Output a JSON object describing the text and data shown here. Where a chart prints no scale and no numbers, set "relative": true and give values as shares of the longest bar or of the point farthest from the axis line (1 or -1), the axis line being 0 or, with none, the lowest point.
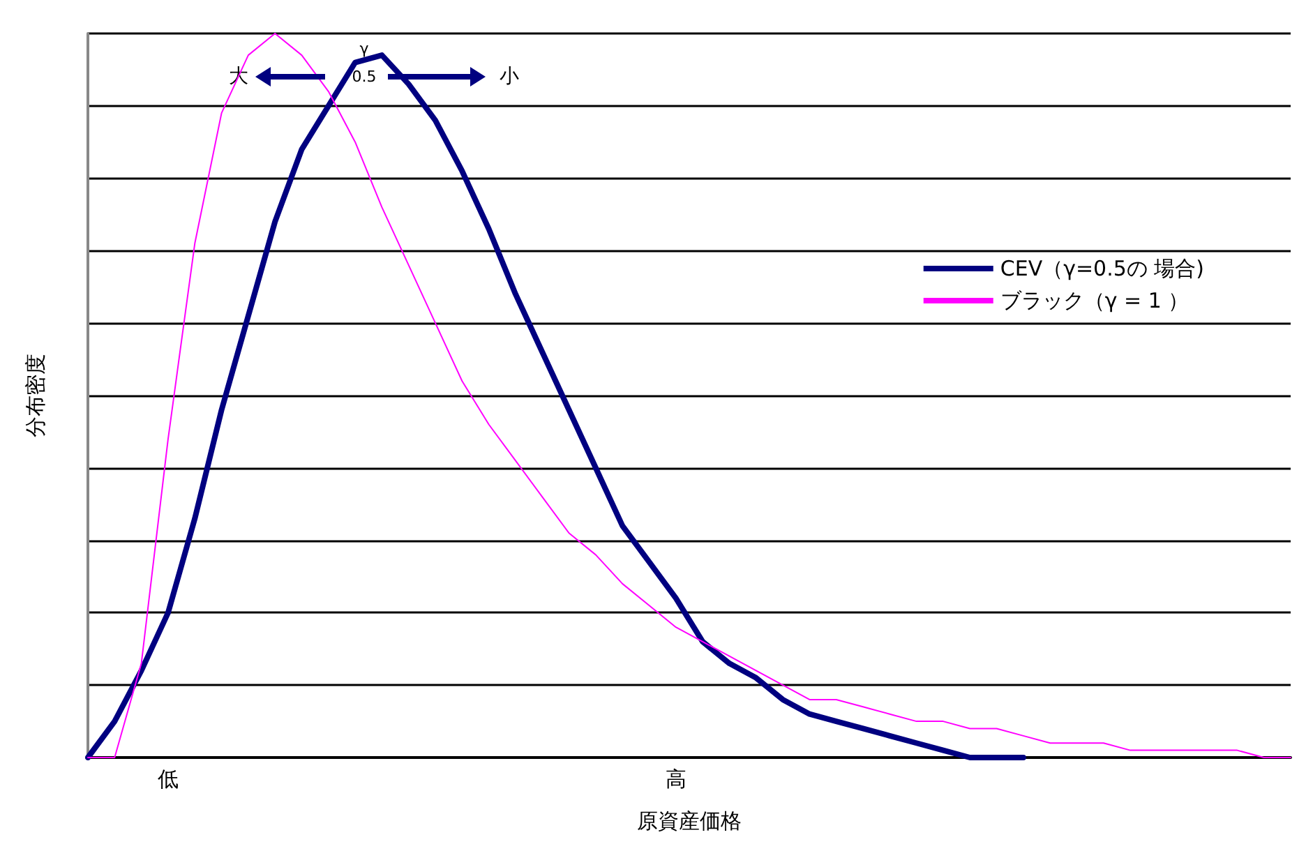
{
  "chart_data": {
    "type": "line",
    "relative": true,
    "xlabel": "原資産価格",
    "ylabel": "分布密度",
    "annotations": [
      "大",
      "γ",
      "0.5",
      "小"
    ],
    "categories": [
      null,
      null,
      null,
      "低",
      null,
      null,
      null,
      null,
      null,
      null,
      null,
      null,
      null,
      null,
      null,
      null,
      null,
      null,
      null,
      null,
      null,
      null,
      "高",
      null,
      null,
      null,
      null,
      null,
      null,
      null,
      null,
      null,
      null,
      null,
      null,
      null,
      null,
      null,
      null,
      null,
      null,
      null,
      null,
      null,
      null,
      null
    ],
    "series": [
      {
        "name": "CEV（γ=0.5の 場合)",
        "color": "#000080",
        "values": [
          0,
          0.05,
          0.12,
          0.2,
          0.33,
          0.48,
          0.61,
          0.74,
          0.84,
          0.9,
          0.96,
          0.97,
          0.93,
          0.88,
          0.81,
          0.73,
          0.64,
          0.56,
          0.48,
          0.4,
          0.32,
          0.27,
          0.22,
          0.16,
          0.13,
          0.11,
          0.08,
          0.06,
          0.05,
          0.04,
          0.03,
          0.02,
          0.01,
          0,
          0,
          0,
          null,
          null,
          null,
          null,
          null,
          null,
          null,
          null,
          null,
          null
        ]
      },
      {
        "name": "ブラック（γ = 1 ）",
        "color": "#ff00ff",
        "values": [
          0,
          0,
          0.13,
          0.44,
          0.71,
          0.89,
          0.97,
          1,
          0.97,
          0.92,
          0.85,
          0.76,
          0.68,
          0.6,
          0.52,
          0.46,
          0.41,
          0.36,
          0.31,
          0.28,
          0.24,
          0.21,
          0.18,
          0.16,
          0.14,
          0.12,
          0.1,
          0.08,
          0.08,
          0.07,
          0.06,
          0.05,
          0.05,
          0.04,
          0.04,
          0.03,
          0.02,
          0.02,
          0.02,
          0.01,
          0.01,
          0.01,
          0.01,
          0.01,
          0,
          0
        ]
      }
    ],
    "grid": "y",
    "legend": "top right",
    "marker": "none",
    "line_style": "solid"
  }
}
